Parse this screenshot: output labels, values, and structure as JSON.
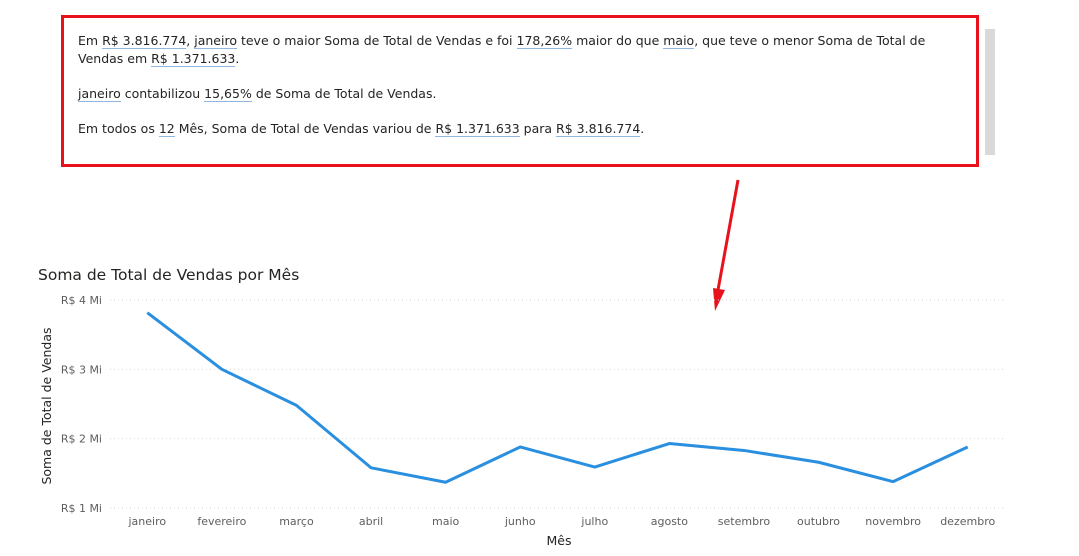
{
  "narrative": {
    "p1": {
      "t1": "Em ",
      "v1": "R$ 3.816.774",
      "t2": ", ",
      "v2": "janeiro",
      "t3": " teve o maior Soma de Total de Vendas e foi ",
      "v3": "178,26%",
      "t4": " maior do que ",
      "v4": "maio",
      "t5": ", que teve o menor Soma de Total de Vendas em ",
      "v5": "R$ 1.371.633",
      "t6": "."
    },
    "p2": {
      "v1": "janeiro",
      "t1": " contabilizou ",
      "v2": "15,65%",
      "t2": " de Soma de Total de Vendas."
    },
    "p3": {
      "t1": "Em todos os ",
      "v1": "12",
      "t2": " Mês, Soma de Total de Vendas variou de ",
      "v2": "R$ 1.371.633",
      "t3": " para ",
      "v3": "R$ 3.816.774",
      "t4": "."
    }
  },
  "colors": {
    "frame": "#e8121c",
    "line": "#2a8fdf",
    "highlight_underline": "#8fb7e0"
  },
  "chart_data": {
    "type": "line",
    "title": "Soma de Total de Vendas por Mês",
    "xlabel": "Mês",
    "ylabel": "Soma de Total de Vendas",
    "categories": [
      "janeiro",
      "fevereiro",
      "março",
      "abril",
      "maio",
      "junho",
      "julho",
      "agosto",
      "setembro",
      "outubro",
      "novembro",
      "dezembro"
    ],
    "values": [
      3816774,
      3000000,
      2480000,
      1580000,
      1371633,
      1880000,
      1590000,
      1930000,
      1830000,
      1660000,
      1380000,
      1880000
    ],
    "yticks": [
      {
        "value": 1000000,
        "label": "R$ 1 Mi"
      },
      {
        "value": 2000000,
        "label": "R$ 2 Mi"
      },
      {
        "value": 3000000,
        "label": "R$ 3 Mi"
      },
      {
        "value": 4000000,
        "label": "R$ 4 Mi"
      }
    ],
    "ylim": [
      1000000,
      4000000
    ],
    "grid": true,
    "legend": "none"
  }
}
